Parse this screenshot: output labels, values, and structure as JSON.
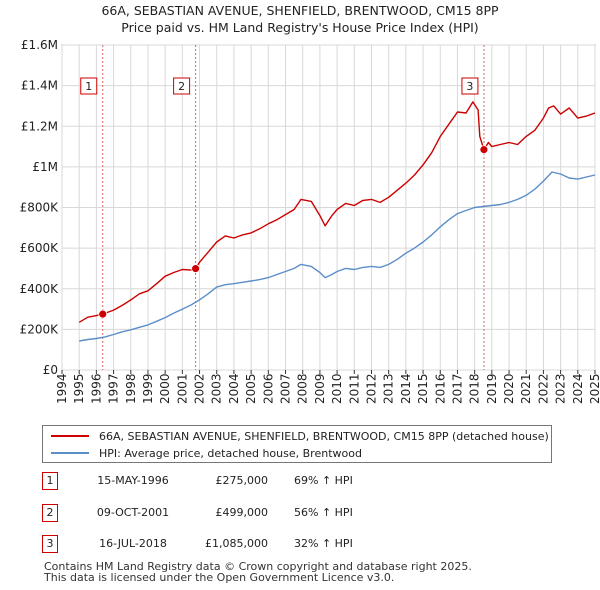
{
  "title_line1": "66A, SEBASTIAN AVENUE, SHENFIELD, BRENTWOOD, CM15 8PP",
  "title_line2": "Price paid vs. HM Land Registry's House Price Index (HPI)",
  "chart_data": {
    "type": "line",
    "title": "66A, SEBASTIAN AVENUE, SHENFIELD, BRENTWOOD, CM15 8PP — Price paid vs. HM Land Registry's House Price Index (HPI)",
    "xlim": [
      1994,
      2025
    ],
    "ylim": [
      0,
      1600000
    ],
    "y_ticks": [
      {
        "value": 0,
        "label": "£0"
      },
      {
        "value": 200000,
        "label": "£200K"
      },
      {
        "value": 400000,
        "label": "£400K"
      },
      {
        "value": 600000,
        "label": "£600K"
      },
      {
        "value": 800000,
        "label": "£800K"
      },
      {
        "value": 1000000,
        "label": "£1M"
      },
      {
        "value": 1200000,
        "label": "£1.2M"
      },
      {
        "value": 1400000,
        "label": "£1.4M"
      },
      {
        "value": 1600000,
        "label": "£1.6M"
      }
    ],
    "x_ticks": [
      1994,
      1995,
      1996,
      1997,
      1998,
      1999,
      2000,
      2001,
      2002,
      2003,
      2004,
      2005,
      2006,
      2007,
      2008,
      2009,
      2010,
      2011,
      2012,
      2013,
      2014,
      2015,
      2016,
      2017,
      2018,
      2019,
      2020,
      2021,
      2022,
      2023,
      2024,
      2025
    ],
    "grid": true,
    "series": [
      {
        "name": "66A, SEBASTIAN AVENUE, SHENFIELD, BRENTWOOD, CM15 8PP (detached house)",
        "color": "#cc0000",
        "x": [
          1995.0,
          1995.5,
          1996.0,
          1996.37,
          1997.0,
          1997.5,
          1998.0,
          1998.5,
          1999.0,
          1999.5,
          2000.0,
          2000.5,
          2001.0,
          2001.5,
          2001.77,
          2002.0,
          2002.5,
          2003.0,
          2003.5,
          2004.0,
          2004.5,
          2005.0,
          2005.5,
          2006.0,
          2006.5,
          2007.0,
          2007.5,
          2007.9,
          2008.5,
          2009.0,
          2009.3,
          2009.7,
          2010.0,
          2010.5,
          2011.0,
          2011.5,
          2012.0,
          2012.5,
          2013.0,
          2013.5,
          2014.0,
          2014.5,
          2015.0,
          2015.5,
          2016.0,
          2016.5,
          2017.0,
          2017.5,
          2017.9,
          2018.2,
          2018.3,
          2018.54,
          2018.8,
          2019.0,
          2019.5,
          2020.0,
          2020.5,
          2021.0,
          2021.5,
          2022.0,
          2022.3,
          2022.6,
          2023.0,
          2023.5,
          2024.0,
          2024.5,
          2025.0
        ],
        "values": [
          235000,
          260000,
          268000,
          275000,
          295000,
          318000,
          345000,
          375000,
          390000,
          425000,
          462000,
          480000,
          495000,
          492000,
          499000,
          530000,
          580000,
          630000,
          660000,
          650000,
          665000,
          675000,
          695000,
          720000,
          740000,
          765000,
          790000,
          840000,
          830000,
          760000,
          710000,
          760000,
          790000,
          820000,
          810000,
          835000,
          840000,
          825000,
          850000,
          885000,
          920000,
          960000,
          1010000,
          1070000,
          1150000,
          1210000,
          1270000,
          1265000,
          1320000,
          1280000,
          1150000,
          1085000,
          1120000,
          1100000,
          1110000,
          1120000,
          1110000,
          1150000,
          1180000,
          1240000,
          1290000,
          1300000,
          1260000,
          1290000,
          1240000,
          1250000,
          1265000
        ]
      },
      {
        "name": "HPI: Average price, detached house, Brentwood",
        "color": "#5b8ec9",
        "x": [
          1995.0,
          1995.5,
          1996.0,
          1996.5,
          1997.0,
          1997.5,
          1998.0,
          1998.5,
          1999.0,
          1999.5,
          2000.0,
          2000.5,
          2001.0,
          2001.5,
          2002.0,
          2002.5,
          2003.0,
          2003.5,
          2004.0,
          2004.5,
          2005.0,
          2005.5,
          2006.0,
          2006.5,
          2007.0,
          2007.5,
          2007.9,
          2008.5,
          2009.0,
          2009.3,
          2009.7,
          2010.0,
          2010.5,
          2011.0,
          2011.5,
          2012.0,
          2012.5,
          2013.0,
          2013.5,
          2014.0,
          2014.5,
          2015.0,
          2015.5,
          2016.0,
          2016.5,
          2017.0,
          2017.5,
          2018.0,
          2018.5,
          2019.0,
          2019.5,
          2020.0,
          2020.5,
          2021.0,
          2021.5,
          2022.0,
          2022.5,
          2023.0,
          2023.5,
          2024.0,
          2024.5,
          2025.0
        ],
        "values": [
          143000,
          150000,
          155000,
          163000,
          175000,
          188000,
          198000,
          210000,
          222000,
          240000,
          258000,
          280000,
          300000,
          320000,
          345000,
          375000,
          408000,
          420000,
          425000,
          432000,
          438000,
          445000,
          455000,
          470000,
          485000,
          500000,
          520000,
          510000,
          480000,
          455000,
          470000,
          485000,
          500000,
          495000,
          505000,
          510000,
          505000,
          520000,
          545000,
          575000,
          600000,
          630000,
          665000,
          705000,
          740000,
          770000,
          785000,
          800000,
          805000,
          810000,
          815000,
          825000,
          840000,
          860000,
          890000,
          930000,
          975000,
          965000,
          945000,
          940000,
          950000,
          960000
        ]
      }
    ],
    "sales": [
      {
        "marker": "1",
        "x": 1996.37,
        "value": 275000
      },
      {
        "marker": "2",
        "x": 2001.77,
        "value": 499000
      },
      {
        "marker": "3",
        "x": 2018.54,
        "value": 1085000
      }
    ]
  },
  "legend": {
    "property_label": "66A, SEBASTIAN AVENUE, SHENFIELD, BRENTWOOD, CM15 8PP (detached house)",
    "hpi_label": "HPI: Average price, detached house, Brentwood",
    "property_color": "#cc0000",
    "hpi_color": "#5b8ec9"
  },
  "sales_table": [
    {
      "marker": "1",
      "date": "15-MAY-1996",
      "price": "£275,000",
      "hpi": "69% ↑ HPI"
    },
    {
      "marker": "2",
      "date": "09-OCT-2001",
      "price": "£499,000",
      "hpi": "56% ↑ HPI"
    },
    {
      "marker": "3",
      "date": "16-JUL-2018",
      "price": "£1,085,000",
      "hpi": "32% ↑ HPI"
    }
  ],
  "footer": {
    "line1": "Contains HM Land Registry data © Crown copyright and database right 2025.",
    "line2": "This data is licensed under the Open Government Licence v3.0."
  }
}
